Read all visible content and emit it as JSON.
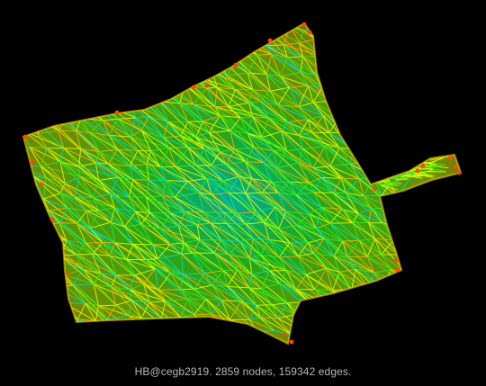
{
  "image": {
    "caption": "HB@cegb2919. 2859 nodes, 159342 edges.",
    "subject": "mesh-graph-visualization",
    "colors": {
      "background": "#000000",
      "caption": "#b8b8b8",
      "edge_low": "#00e0c0",
      "edge_mid": "#33ee22",
      "edge_high": "#e8ff00",
      "edge_hot": "#ffb000",
      "node_hot": "#ff4800"
    }
  }
}
